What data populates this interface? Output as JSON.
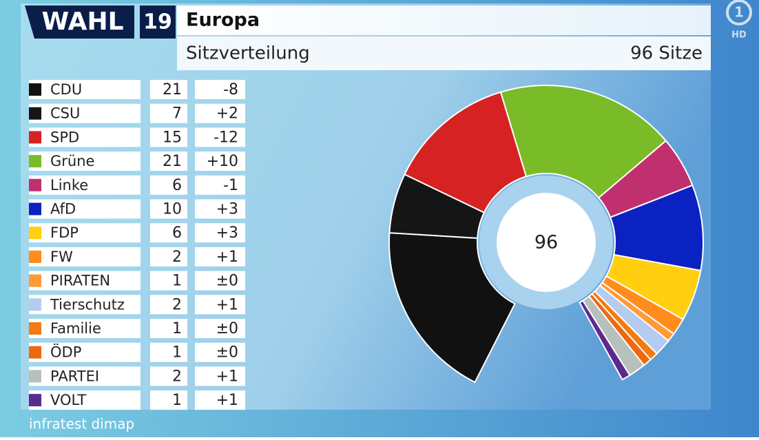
{
  "header": {
    "logo": "WAHL",
    "logo_year": "19",
    "title": "Europa",
    "subtitle": "Sitzverteilung",
    "total_label": "96 Sitze",
    "channel_logo": "1",
    "channel": "HD"
  },
  "source": "infratest dimap",
  "chart_data": {
    "type": "pie",
    "center_label": "96",
    "categories": [
      "CDU",
      "CSU",
      "SPD",
      "Grüne",
      "Linke",
      "AfD",
      "FDP",
      "FW",
      "PIRATEN",
      "Tierschutz",
      "Familie",
      "ÖDP",
      "PARTEI",
      "VOLT"
    ],
    "values": [
      21,
      7,
      15,
      21,
      6,
      10,
      6,
      2,
      1,
      2,
      1,
      1,
      2,
      1
    ],
    "changes": [
      "-8",
      "+2",
      "-12",
      "+10",
      "-1",
      "+3",
      "+3",
      "+1",
      "±0",
      "+1",
      "±0",
      "±0",
      "+1",
      "+1"
    ],
    "colors": [
      "#111111",
      "#151515",
      "#d62222",
      "#7abb28",
      "#c0306f",
      "#0a22c2",
      "#ffcf10",
      "#ff8c1c",
      "#ff9a34",
      "#b4ccf0",
      "#f27c12",
      "#ee6810",
      "#b8c0bc",
      "#5b2a8e"
    ]
  }
}
